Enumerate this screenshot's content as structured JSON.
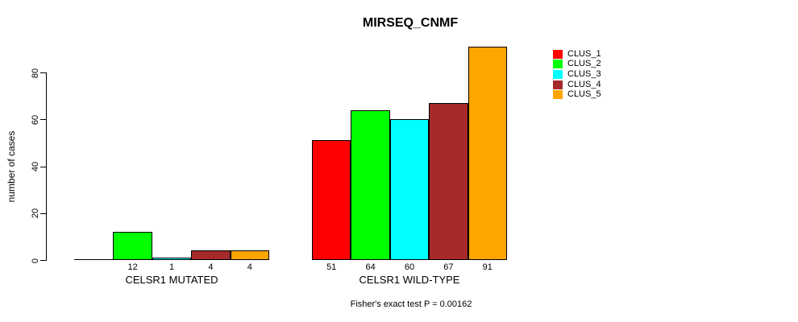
{
  "chart_data": {
    "type": "bar",
    "title": "MIRSEQ_CNMF",
    "ylabel": "number of cases",
    "xlabel": "",
    "ylim": [
      0,
      91
    ],
    "yticks": [
      0,
      20,
      40,
      60,
      80
    ],
    "grid": "off",
    "legend_position": "right-outside",
    "annotation": "Fisher's exact test P = 0.00162",
    "series": [
      {
        "name": "CLUS_1",
        "color": "#FF0000"
      },
      {
        "name": "CLUS_2",
        "color": "#00FF00"
      },
      {
        "name": "CLUS_3",
        "color": "#00FFFF"
      },
      {
        "name": "CLUS_4",
        "color": "#A52A2A"
      },
      {
        "name": "CLUS_5",
        "color": "#FFA500"
      }
    ],
    "groups": [
      {
        "label": "CELSR1 MUTATED",
        "values": [
          0,
          12,
          1,
          4,
          4
        ],
        "bar_labels": [
          "",
          "12",
          "1",
          "4",
          "4"
        ]
      },
      {
        "label": "CELSR1 WILD-TYPE",
        "values": [
          51,
          64,
          60,
          67,
          91
        ],
        "bar_labels": [
          "51",
          "64",
          "60",
          "67",
          "91"
        ]
      }
    ]
  }
}
